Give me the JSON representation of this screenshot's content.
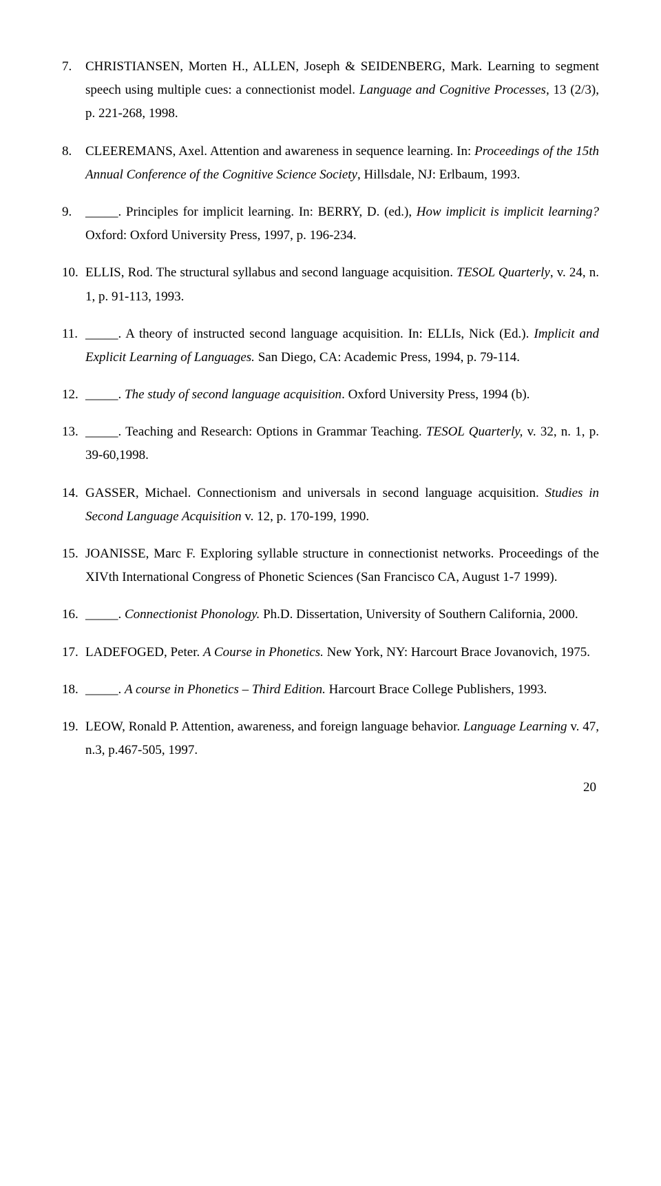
{
  "refs": [
    {
      "pre": "CHRISTIANSEN, Morten H., ALLEN, Joseph & SEIDENBERG, Mark. Learning to segment speech using multiple cues: a connectionist model. ",
      "ital1": "Language and Cognitive Processes,",
      "post1": " 13 (2/3), p. 221-268, 1998."
    },
    {
      "pre": "CLEEREMANS, Axel. Attention and awareness in sequence learning. In: ",
      "ital1": "Proceedings of the 15th Annual Conference of the Cognitive Science Society",
      "post1": ", Hillsdale, NJ: Erlbaum, 1993."
    },
    {
      "pre": "_____. Principles for implicit learning. In: BERRY, D. (ed.), ",
      "ital1": "How implicit is implicit learning?",
      "post1": " Oxford: Oxford University Press, 1997, p. 196-234."
    },
    {
      "pre": "ELLIS, Rod. The structural syllabus and second language acquisition. ",
      "ital1": "TESOL Quarterly",
      "post1": ", v. 24, n. 1, p. 91-113, 1993."
    },
    {
      "pre": "_____. A theory of instructed second language acquisition. In: ELLIs, Nick (Ed.). ",
      "ital1": "Implicit and Explicit Learning of Languages.",
      "post1": " San Diego, CA: Academic Press, 1994, p. 79-114."
    },
    {
      "pre": "_____.  ",
      "ital1": "The study of second language acquisition",
      "post1": ".  Oxford University Press, 1994 (b)."
    },
    {
      "pre": "_____. Teaching and Research: Options in Grammar Teaching. ",
      "ital1": "TESOL Quarterly,",
      "post1": " v. 32, n. 1, p. 39-60,1998."
    },
    {
      "pre": "GASSER, Michael. Connectionism and universals in second language acquisition. ",
      "ital1": "Studies in Second Language Acquisition",
      "post1": " v. 12, p. 170-199, 1990."
    },
    {
      "pre": "JOANISSE, Marc F. Exploring syllable structure in connectionist networks. Proceedings of the XIVth International Congress of Phonetic Sciences (San Francisco CA, August 1-7 1999).",
      "ital1": "",
      "post1": ""
    },
    {
      "pre": "_____. ",
      "ital1": "Connectionist Phonology.",
      "post1": " Ph.D. Dissertation, University of Southern California, 2000."
    },
    {
      "pre": "LADEFOGED, Peter. ",
      "ital1": "A Course in Phonetics.",
      "post1": " New York, NY: Harcourt Brace Jovanovich, 1975."
    },
    {
      "pre": "_____. ",
      "ital1": "A course in Phonetics – Third Edition.",
      "post1": " Harcourt Brace College Publishers, 1993."
    },
    {
      "pre": "LEOW, Ronald P. Attention, awareness, and foreign language behavior. ",
      "ital1": "Language Learning",
      "post1": " v. 47, n.3, p.467-505, 1997."
    }
  ],
  "page_number": "20"
}
